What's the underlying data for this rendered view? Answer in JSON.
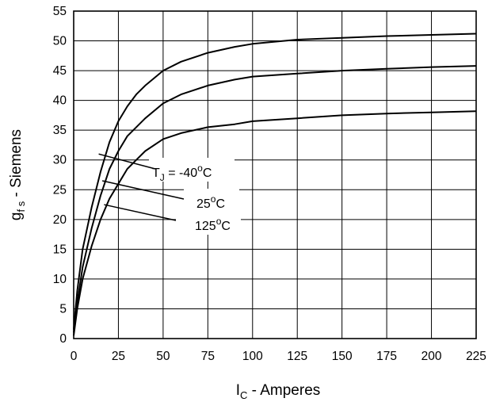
{
  "chart_data": {
    "type": "line",
    "x_axis": {
      "label_main": "I",
      "label_sub": "C",
      "label_rest": " - Amperes",
      "min": 0,
      "max": 225,
      "ticks": [
        0,
        25,
        50,
        75,
        100,
        125,
        150,
        175,
        200,
        225
      ],
      "tick_labels": [
        "0",
        "25",
        "50",
        "75",
        "100",
        "125",
        "150",
        "175",
        "200",
        "225"
      ]
    },
    "y_axis": {
      "label_main": "g",
      "label_sub": "f s",
      "label_rest": " - Siemens",
      "min": 0,
      "max": 55,
      "ticks": [
        0,
        5,
        10,
        15,
        20,
        25,
        30,
        35,
        40,
        45,
        50,
        55
      ],
      "tick_labels": [
        "0",
        "5",
        "10",
        "15",
        "20",
        "25",
        "30",
        "35",
        "40",
        "45",
        "50",
        "55"
      ]
    },
    "grid": true,
    "series": [
      {
        "x": [
          0,
          2,
          5,
          10,
          15,
          20,
          25,
          30,
          35,
          40,
          50,
          60,
          75,
          90,
          100,
          125,
          150,
          175,
          200,
          225
        ],
        "y": [
          1.5,
          8,
          15,
          22,
          28,
          33,
          36.5,
          39,
          41,
          42.5,
          45,
          46.5,
          48,
          49,
          49.5,
          50.2,
          50.5,
          50.8,
          51,
          51.2
        ]
      },
      {
        "x": [
          0,
          2,
          5,
          10,
          15,
          20,
          25,
          30,
          35,
          40,
          50,
          60,
          75,
          90,
          100,
          125,
          150,
          175,
          200,
          225
        ],
        "y": [
          1,
          6,
          12,
          18.5,
          24,
          28.5,
          31.5,
          34,
          35.5,
          37,
          39.5,
          41,
          42.5,
          43.5,
          44,
          44.5,
          45,
          45.3,
          45.6,
          45.8
        ]
      },
      {
        "x": [
          0,
          2,
          5,
          10,
          15,
          20,
          25,
          30,
          35,
          40,
          50,
          60,
          75,
          90,
          100,
          125,
          150,
          175,
          200,
          225
        ],
        "y": [
          0.5,
          5,
          10,
          15.5,
          20,
          23.5,
          26,
          28.5,
          30,
          31.5,
          33.5,
          34.5,
          35.5,
          36,
          36.5,
          37,
          37.5,
          37.8,
          38,
          38.2
        ]
      }
    ],
    "annotations": [
      {
        "main": "T",
        "sub": "J",
        "value": " = -40",
        "sup": "o",
        "unit": "C",
        "target_x": 14,
        "target_y": 31
      },
      {
        "main": "",
        "sub": "",
        "value": "25",
        "sup": "o",
        "unit": "C",
        "target_x": 16,
        "target_y": 26.5
      },
      {
        "main": "",
        "sub": "",
        "value": "125",
        "sup": "o",
        "unit": "C",
        "target_x": 17,
        "target_y": 22.5
      }
    ]
  }
}
